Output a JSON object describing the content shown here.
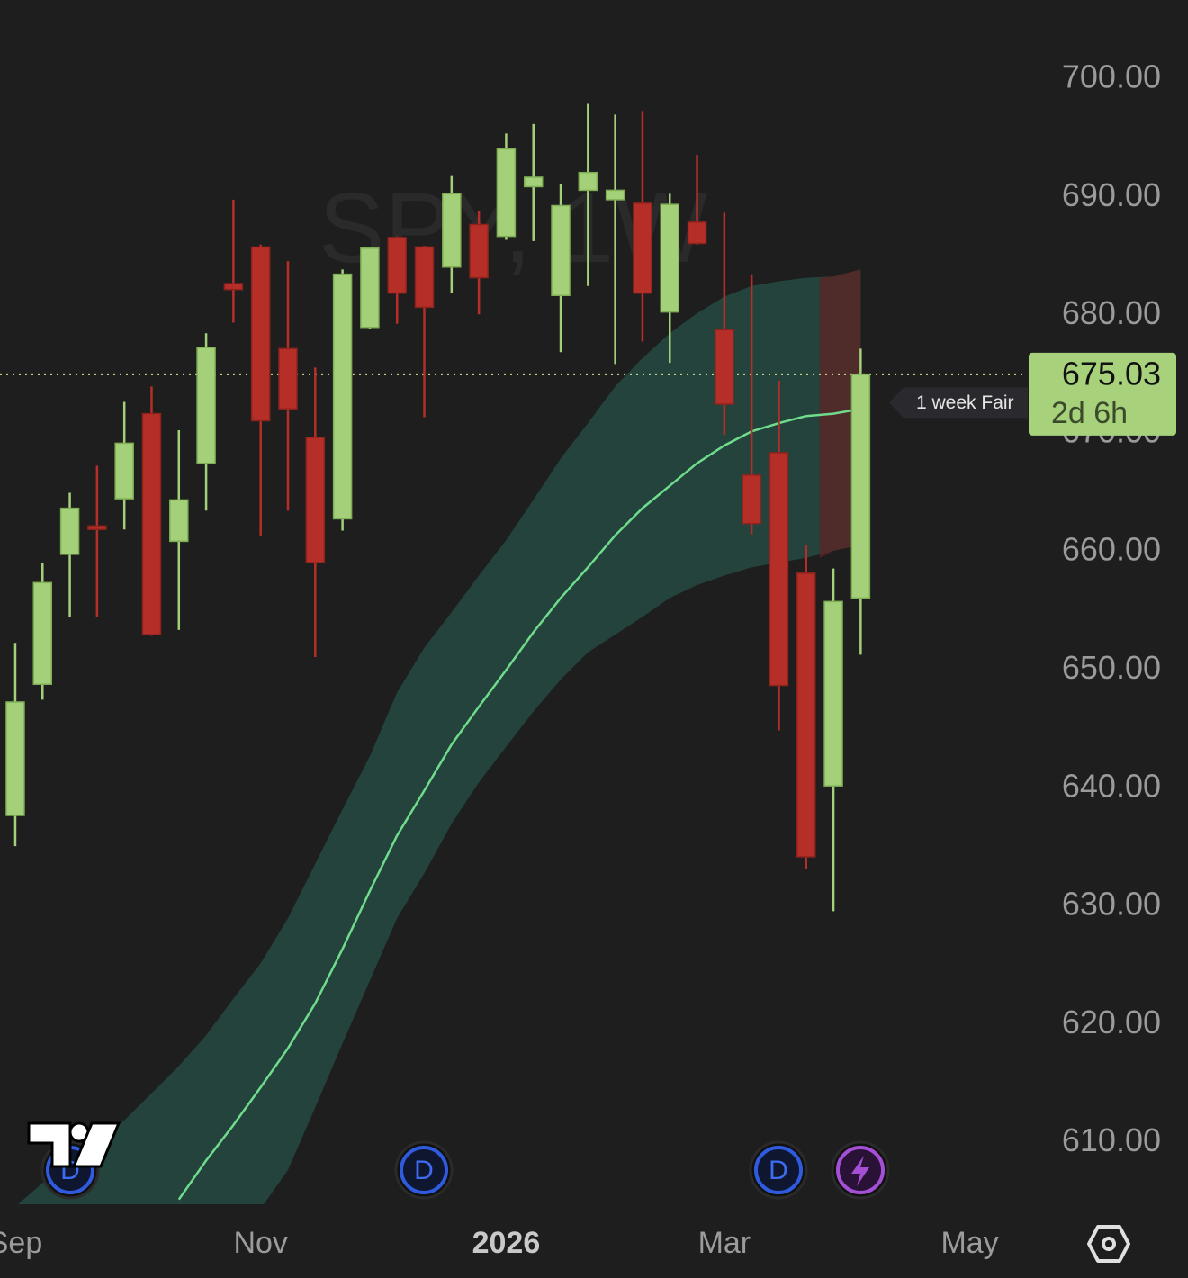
{
  "chart_data": {
    "type": "candlestick",
    "title": "SPY, 1W",
    "xlim": [
      -0.56,
      37.06
    ],
    "xticks": [
      {
        "value": 0,
        "label": "Sep"
      },
      {
        "value": 9,
        "label": "Nov"
      },
      {
        "value": 18,
        "label": "2026"
      },
      {
        "value": 26,
        "label": "Mar"
      },
      {
        "value": 35,
        "label": "May"
      }
    ],
    "ylim": [
      604.8,
      706.7
    ],
    "yticks": [
      {
        "value": 700,
        "label": "700.00"
      },
      {
        "value": 690,
        "label": "690.00"
      },
      {
        "value": 680,
        "label": "680.00"
      },
      {
        "value": 670,
        "label": "670.00"
      },
      {
        "value": 660,
        "label": "660.00"
      },
      {
        "value": 650,
        "label": "650.00"
      },
      {
        "value": 640,
        "label": "640.00"
      },
      {
        "value": 630,
        "label": "630.00"
      },
      {
        "value": 620,
        "label": "620.00"
      },
      {
        "value": 610,
        "label": "610.00"
      }
    ],
    "up_color": "#a5d07a",
    "down_color": "#b52f28",
    "open": [
      637.7,
      648.8,
      659.8,
      662.2,
      664.5,
      671.7,
      660.9,
      667.5,
      682.7,
      685.8,
      677.2,
      669.7,
      662.8,
      679.0,
      686.6,
      685.8,
      684.1,
      687.7,
      686.7,
      690.9,
      681.7,
      690.6,
      689.8,
      689.5,
      680.3,
      687.9,
      678.8,
      666.5,
      668.4,
      658.2,
      640.2,
      656.1
    ],
    "high": [
      652.3,
      659.1,
      665.0,
      667.3,
      672.7,
      674.0,
      670.3,
      678.5,
      689.8,
      686.0,
      684.6,
      675.6,
      683.9,
      685.8,
      686.7,
      685.9,
      691.8,
      688.8,
      695.4,
      696.2,
      691.1,
      697.9,
      697.0,
      697.3,
      690.3,
      693.6,
      688.7,
      683.5,
      674.5,
      660.6,
      658.6,
      677.2
    ],
    "low": [
      635.1,
      647.5,
      654.5,
      654.5,
      661.9,
      652.9,
      653.4,
      663.5,
      679.4,
      661.4,
      663.5,
      651.1,
      661.8,
      678.9,
      679.3,
      671.4,
      681.9,
      680.1,
      686.4,
      686.3,
      676.9,
      682.5,
      675.9,
      677.8,
      676.0,
      686.0,
      669.9,
      661.5,
      644.9,
      633.2,
      629.6,
      651.3
    ],
    "close": [
      647.3,
      657.4,
      663.7,
      661.9,
      669.2,
      653.0,
      664.4,
      677.3,
      682.2,
      671.1,
      672.1,
      659.1,
      683.5,
      685.7,
      681.9,
      680.7,
      690.3,
      683.2,
      694.1,
      691.7,
      689.3,
      692.1,
      690.6,
      681.9,
      689.4,
      686.1,
      672.5,
      662.4,
      648.7,
      634.2,
      655.8,
      675.03
    ],
    "ma": {
      "name": "1 week Fair",
      "color": "#6fdc8c",
      "band_color": "#24433d",
      "zone_color": "#5a2626",
      "values": [
        null,
        null,
        null,
        null,
        null,
        null,
        605.2,
        608.5,
        611.5,
        614.7,
        618.0,
        621.8,
        626.4,
        631.3,
        636.0,
        639.8,
        643.7,
        646.9,
        650.0,
        653.2,
        656.1,
        658.7,
        661.4,
        663.7,
        665.6,
        667.5,
        669.0,
        670.2,
        670.9,
        671.5,
        671.7,
        672.1
      ],
      "upper": [
        604.6,
        606.6,
        608.5,
        610.0,
        611.9,
        614.2,
        616.5,
        619.1,
        622.2,
        625.2,
        629.0,
        633.6,
        638.2,
        642.7,
        648.1,
        651.9,
        654.9,
        658.0,
        661.0,
        664.4,
        667.9,
        670.9,
        674.0,
        676.4,
        678.5,
        680.2,
        681.6,
        682.5,
        682.9,
        683.2,
        683.3,
        683.9
      ],
      "lower": [
        null,
        null,
        null,
        null,
        null,
        null,
        null,
        null,
        null,
        null,
        607.7,
        613.0,
        618.4,
        623.7,
        629.0,
        632.8,
        637.0,
        640.5,
        643.5,
        646.5,
        649.2,
        651.5,
        653.0,
        654.5,
        656.1,
        657.2,
        658.0,
        658.7,
        659.1,
        659.5,
        660.1,
        660.6
      ]
    },
    "last_price": 675.03,
    "countdown": "2d 6h",
    "event_labels": [
      "D",
      "D",
      "D"
    ]
  }
}
